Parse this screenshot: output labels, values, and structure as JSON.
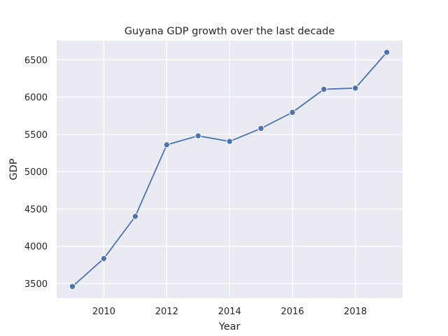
{
  "chart_data": {
    "type": "line",
    "title": "Guyana GDP growth over the last decade",
    "xlabel": "Year",
    "ylabel": "GDP",
    "x": [
      2009,
      2010,
      2011,
      2012,
      2013,
      2014,
      2015,
      2016,
      2017,
      2018,
      2019
    ],
    "series": [
      {
        "values": [
          3460,
          3835,
          4400,
          5360,
          5480,
          5405,
          5580,
          5795,
          6105,
          6120,
          6600
        ]
      }
    ],
    "xticks": [
      2010,
      2012,
      2014,
      2016,
      2018
    ],
    "yticks": [
      3500,
      4000,
      4500,
      5000,
      5500,
      6000,
      6500
    ],
    "xlim": [
      2008.5,
      2019.5
    ],
    "ylim": [
      3303,
      6757
    ],
    "grid": true,
    "colors": {
      "background": "#eaeaf2",
      "grid": "#ffffff",
      "line": "#4c72b0",
      "marker_edge": "#ffffff",
      "text": "#262626"
    }
  }
}
